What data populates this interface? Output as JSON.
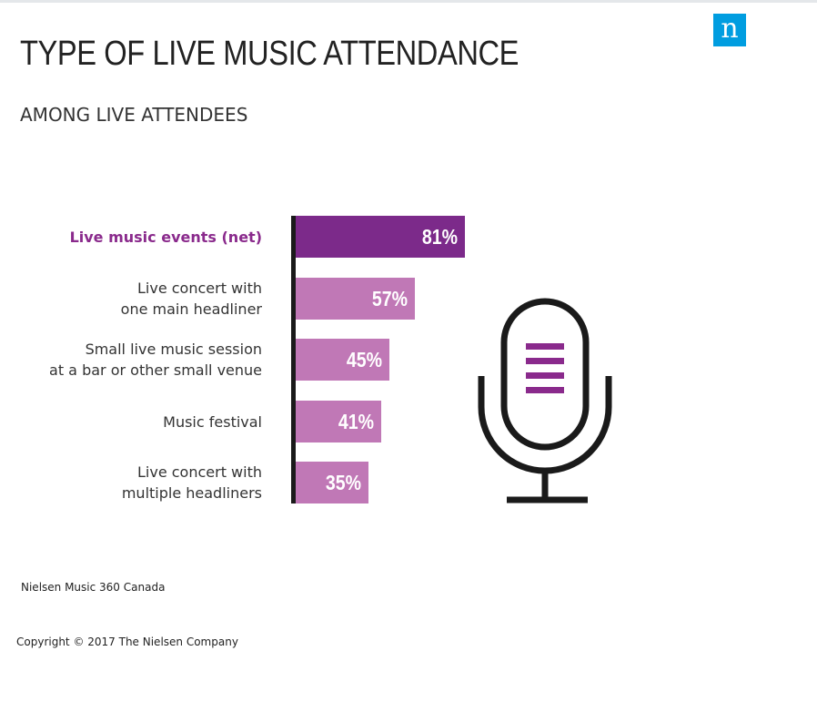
{
  "brand": {
    "logo_letter": "n",
    "logo_color": "#009de0"
  },
  "title": "TYPE OF LIVE MUSIC ATTENDANCE",
  "subtitle": "AMONG LIVE ATTENDEES",
  "chart_data": {
    "type": "bar",
    "orientation": "horizontal",
    "title": "TYPE OF LIVE MUSIC ATTENDANCE",
    "subtitle": "AMONG LIVE ATTENDEES",
    "categories": [
      [
        "Live music events (net)"
      ],
      [
        "Live concert with",
        "one main headliner"
      ],
      [
        "Small live music session",
        "at a bar or other small venue"
      ],
      [
        "Music festival"
      ],
      [
        "Live concert with",
        "multiple headliners"
      ]
    ],
    "values": [
      81,
      57,
      45,
      41,
      35
    ],
    "value_labels": [
      "81%",
      "57%",
      "45%",
      "41%",
      "35%"
    ],
    "highlighted_index": 0,
    "colors": {
      "highlight": "#7c2a8a",
      "highlight_text": "#8a2a8c",
      "bar": "#c078b6"
    },
    "xlim": [
      0,
      100
    ],
    "grid": false,
    "legend": "none"
  },
  "illustration": {
    "icon": "microphone-icon",
    "accent_color": "#8a2a8c"
  },
  "footer": {
    "source": "Nielsen Music 360 Canada",
    "copyright": "Copyright © 2017 The Nielsen Company"
  }
}
